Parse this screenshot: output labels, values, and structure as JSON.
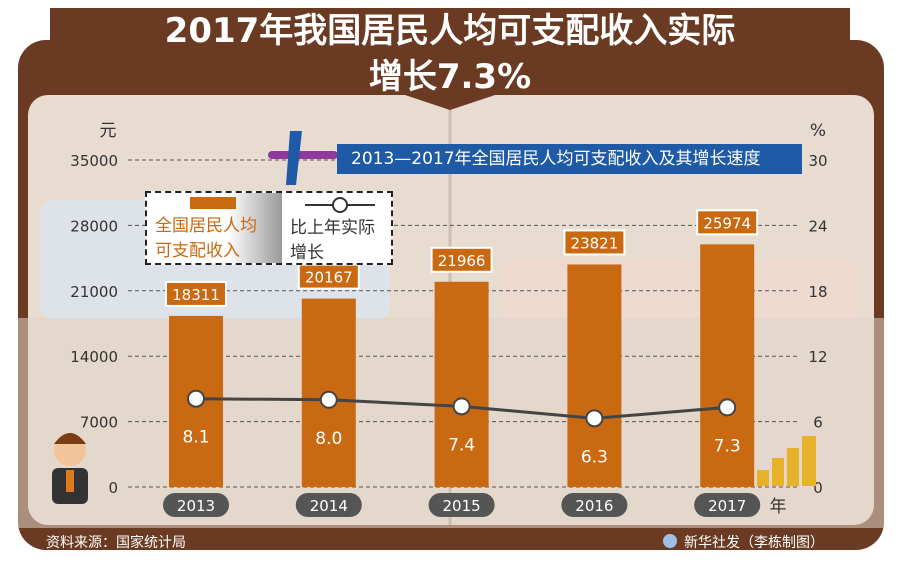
{
  "title_line1": "2017年我国居民人均可支配收入实际",
  "title_line2": "增长7.3%",
  "chart_data": {
    "type": "bar",
    "title": "2013—2017年全国居民人均可支配收入及其增长速度",
    "categories": [
      "2013",
      "2014",
      "2015",
      "2016",
      "2017"
    ],
    "xlabel": "年",
    "ylabel": "元",
    "y2label": "%",
    "ylim": [
      0,
      35000
    ],
    "y2lim": [
      0,
      30
    ],
    "yticks": [
      "0",
      "7000",
      "14000",
      "21000",
      "28000",
      "35000"
    ],
    "y2ticks": [
      "0",
      "6",
      "12",
      "18",
      "24",
      "30"
    ],
    "grid": true,
    "legend_placement": "top-left",
    "series": [
      {
        "name": "全国居民人均可支配收入",
        "type": "bar",
        "axis": "left",
        "values": [
          18311,
          20167,
          21966,
          23821,
          25974
        ],
        "labels": [
          "18311",
          "20167",
          "21966",
          "23821",
          "25974"
        ],
        "color": "#c96a12"
      },
      {
        "name": "比上年实际增长",
        "type": "line",
        "axis": "right",
        "values": [
          8.1,
          8.0,
          7.4,
          6.3,
          7.3
        ],
        "labels": [
          "8.1",
          "8.0",
          "7.4",
          "6.3",
          "7.3"
        ],
        "color": "#444444"
      }
    ]
  },
  "legend": {
    "bar_line1": "全国居民人均",
    "bar_line2": "可支配收入",
    "line_line1": "比上年实际",
    "line_line2": "增长"
  },
  "source": "资料来源：国家统计局",
  "credit": "新华社发（李栋制图）",
  "colors": {
    "wallet": "#6b3a22",
    "bar": "#c96a12",
    "banner": "#1e5aa6",
    "paper": "#e8dcd0"
  }
}
